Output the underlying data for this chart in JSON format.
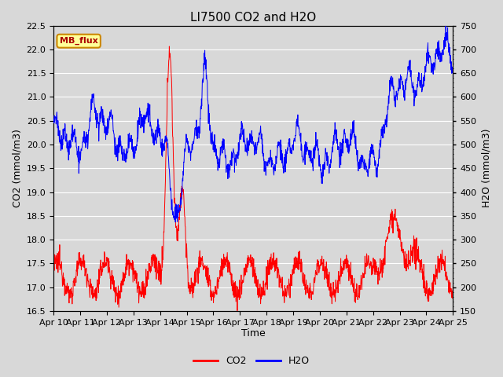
{
  "title": "LI7500 CO2 and H2O",
  "xlabel": "Time",
  "ylabel_left": "CO2 (mmol/m3)",
  "ylabel_right": "H2O (mmol/m3)",
  "ylim_left": [
    16.5,
    22.5
  ],
  "ylim_right": [
    150,
    750
  ],
  "xtick_labels": [
    "Apr 10",
    "Apr 11",
    "Apr 12",
    "Apr 13",
    "Apr 14",
    "Apr 15",
    "Apr 16",
    "Apr 17",
    "Apr 18",
    "Apr 19",
    "Apr 20",
    "Apr 21",
    "Apr 22",
    "Apr 23",
    "Apr 24",
    "Apr 25"
  ],
  "annotation_text": "MB_flux",
  "annotation_bg": "#FFFF99",
  "annotation_border": "#CC8800",
  "co2_color": "#FF0000",
  "h2o_color": "#0000FF",
  "background_color": "#D8D8D8",
  "plot_bg": "#D8D8D8",
  "title_fontsize": 11,
  "axis_fontsize": 9,
  "tick_fontsize": 8,
  "legend_co2": "CO2",
  "legend_h2o": "H2O",
  "grid_color": "#FFFFFF"
}
